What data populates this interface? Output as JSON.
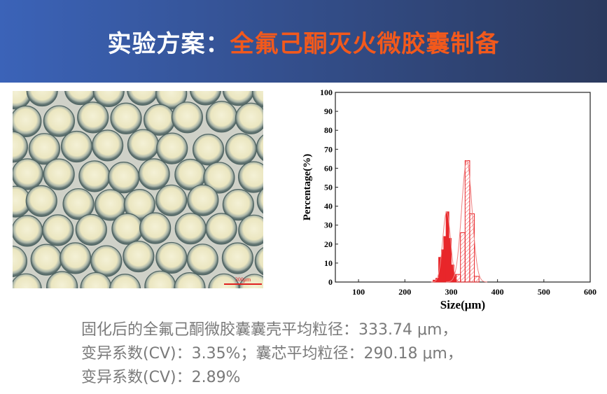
{
  "header": {
    "title_prefix": "实验方案：",
    "title_highlight": "全氟己酮灭火微胶囊制备",
    "colors": {
      "title": "#ffffff",
      "highlight": "#f2591c"
    }
  },
  "micrograph": {
    "scale_bar_label": "300μm",
    "scale_bar_color": "#e02020"
  },
  "chart_data": {
    "type": "bar",
    "xlabel": "Size(μm)",
    "ylabel": "Percentage(%)",
    "xlim": [
      50,
      600
    ],
    "ylim": [
      0,
      100
    ],
    "xticks": [
      100,
      200,
      300,
      400,
      500,
      600
    ],
    "yticks": [
      0,
      10,
      20,
      30,
      40,
      50,
      60,
      70,
      80,
      90,
      100
    ],
    "series": [
      {
        "style": "solid-fill",
        "color": "#e8262a",
        "bins": [
          [
            261,
            267,
            1
          ],
          [
            267,
            273,
            2
          ],
          [
            273,
            279,
            13
          ],
          [
            279,
            284,
            17
          ],
          [
            284,
            289,
            24
          ],
          [
            289,
            295,
            37
          ],
          [
            295,
            300,
            23
          ],
          [
            300,
            306,
            9
          ],
          [
            306,
            311,
            4
          ]
        ],
        "fit": {
          "mean": 290.18,
          "sd": 8.4,
          "peak": 37
        }
      },
      {
        "style": "hatched",
        "color": "#e8262a",
        "bins": [
          [
            310,
            320,
            4
          ],
          [
            320,
            330,
            26
          ],
          [
            330,
            340,
            64
          ],
          [
            340,
            350,
            36
          ],
          [
            350,
            360,
            3
          ]
        ],
        "fit": {
          "mean": 333.74,
          "sd": 11.2,
          "peak": 64
        }
      }
    ]
  },
  "caption": {
    "line1": "固化后的全氟己酮微胶囊囊壳平均粒径：333.74 μm，",
    "line2": "变异系数(CV)：3.35%；囊芯平均粒径：290.18 μm，",
    "line3": "变异系数(CV)：2.89%"
  }
}
